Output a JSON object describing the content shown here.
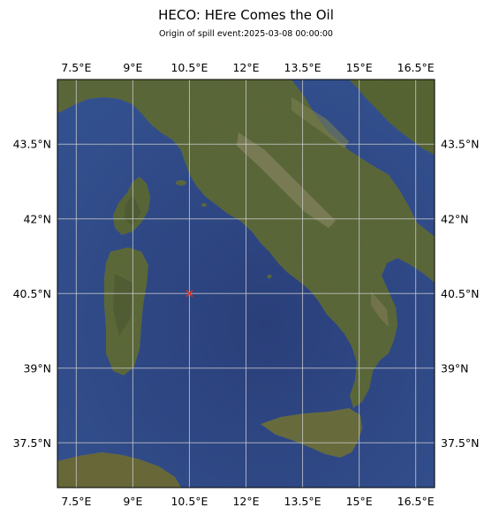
{
  "title": "HECO: HEre Comes the Oil",
  "subtitle": "Origin of spill event:2025-03-08 00:00:00",
  "colors": {
    "sea": "#26407a",
    "sea_light": "#3a5b98",
    "land": "#5e6a3c",
    "land_dark": "#424b2a",
    "land_light": "#7c8552",
    "mountain": "#8a8566",
    "gridline": "#d0d0d0",
    "spill_marker": "#e03020"
  },
  "chart_data": {
    "type": "map",
    "projection": "PlateCarree",
    "extent": {
      "lon": [
        7.0,
        17.0
      ],
      "lat": [
        36.6,
        44.8
      ]
    },
    "basemap": "satellite-imagery",
    "grid": true,
    "lon_ticks": [
      7.5,
      9,
      10.5,
      12,
      13.5,
      15,
      16.5
    ],
    "lon_tick_labels": [
      "7.5°E",
      "9°E",
      "10.5°E",
      "12°E",
      "13.5°E",
      "15°E",
      "16.5°E"
    ],
    "lat_ticks": [
      37.5,
      39,
      40.5,
      42,
      43.5
    ],
    "lat_tick_labels": [
      "37.5°N",
      "39°N",
      "40.5°N",
      "42°N",
      "43.5°N"
    ],
    "spill_origin": {
      "lon": 10.5,
      "lat": 40.5,
      "marker": "red-x-icon"
    }
  }
}
